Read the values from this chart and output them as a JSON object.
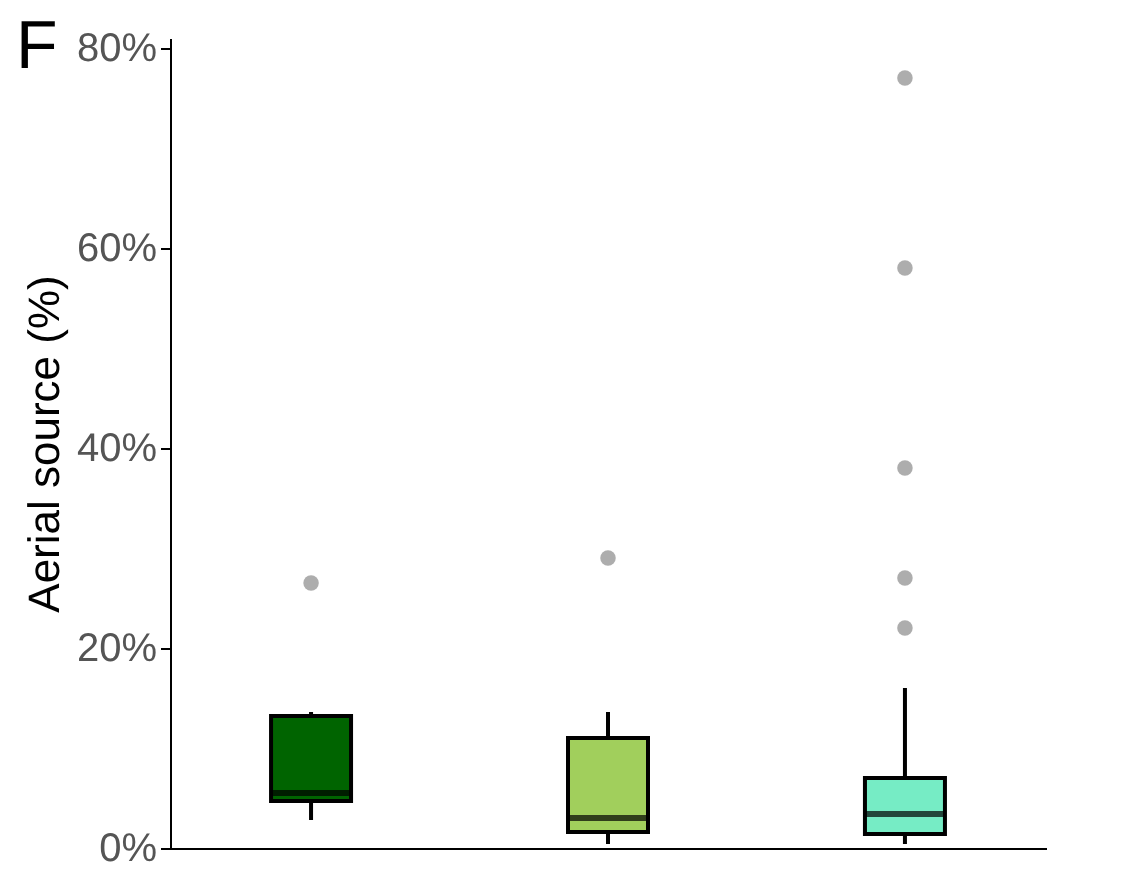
{
  "chart_data": {
    "type": "box",
    "categories": [
      null,
      null,
      null
    ],
    "ylabel": "Aerial source (%)",
    "annotations": [
      "F"
    ],
    "ylim": [
      0,
      81
    ],
    "yticks": [
      {
        "value": 0,
        "label": "0%"
      },
      {
        "value": 20,
        "label": "20%"
      },
      {
        "value": 40,
        "label": "40%"
      },
      {
        "value": 60,
        "label": "60%"
      },
      {
        "value": 80,
        "label": "80%"
      }
    ],
    "tick_labels": "y",
    "grid": false,
    "legend": false,
    "colors": [
      "#006400",
      "#a1cf5c",
      "#76ecc5"
    ],
    "boxes": [
      {
        "low": 2.8,
        "q1": 4.7,
        "median": 5.5,
        "q3": 13.2,
        "high": 13.6,
        "outliers": [
          26.5
        ]
      },
      {
        "low": 0.4,
        "q1": 1.6,
        "median": 3,
        "q3": 11,
        "high": 13.6,
        "outliers": [
          29
        ]
      },
      {
        "low": 0.4,
        "q1": 1.4,
        "median": 3.4,
        "q3": 7,
        "high": 16,
        "outliers": [
          77,
          58,
          38,
          27,
          22
        ]
      }
    ]
  }
}
